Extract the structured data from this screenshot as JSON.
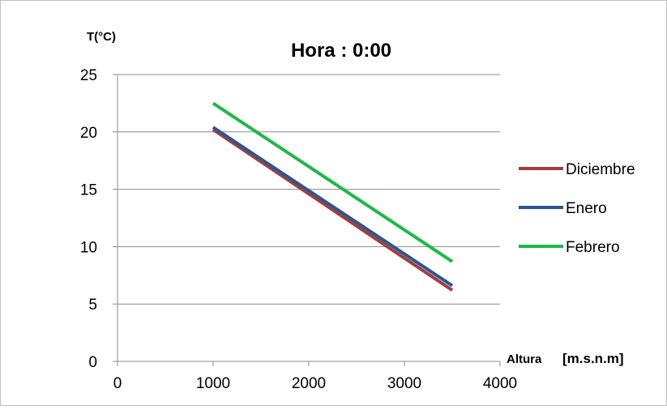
{
  "chart_data": {
    "type": "line",
    "title": "Hora : 0:00",
    "ylabel": "T(°C)",
    "xlabel": "Altura",
    "xlabel_unit": "[m.s.n.m]",
    "xlim": [
      0,
      4000
    ],
    "ylim": [
      0,
      25
    ],
    "xticks": [
      "0",
      "1000",
      "2000",
      "3000",
      "4000"
    ],
    "yticks": [
      "0",
      "5",
      "10",
      "15",
      "20",
      "25"
    ],
    "grid": "horizontal",
    "legend_position": "right",
    "series": [
      {
        "name": "Diciembre",
        "color": "#a0403b",
        "x": [
          1000,
          3500
        ],
        "y": [
          20.2,
          6.2
        ]
      },
      {
        "name": "Enero",
        "color": "#2e5591",
        "x": [
          1000,
          3500
        ],
        "y": [
          20.4,
          6.6
        ]
      },
      {
        "name": "Febrero",
        "color": "#1fb84a",
        "x": [
          1000,
          3500
        ],
        "y": [
          22.5,
          8.7
        ]
      }
    ]
  }
}
